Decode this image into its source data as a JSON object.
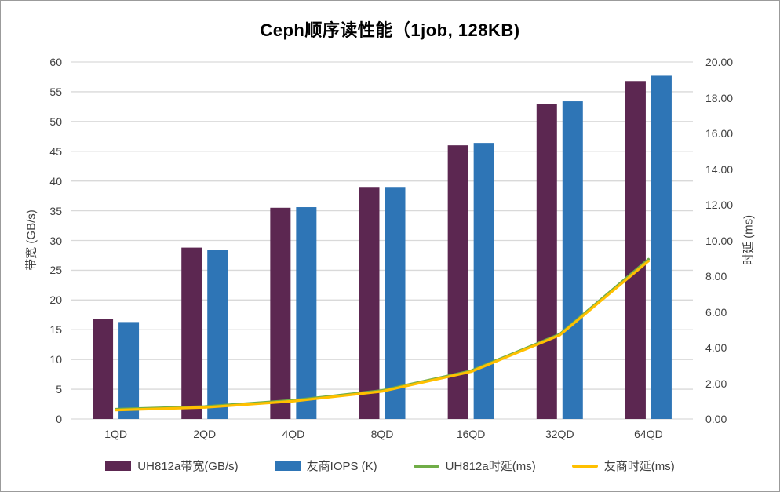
{
  "title": "Ceph顺序读性能（1job, 128KB)",
  "chart_data": {
    "type": "combo-bar-line",
    "title": "Ceph顺序读性能（1job, 128KB)",
    "categories": [
      "1QD",
      "2QD",
      "4QD",
      "8QD",
      "16QD",
      "32QD",
      "64QD"
    ],
    "series": [
      {
        "name": "UH812a带宽(GB/s)",
        "type": "bar",
        "axis": "left",
        "color": "#5C2751",
        "values": [
          16.8,
          28.8,
          35.5,
          39.0,
          46.0,
          53.0,
          56.8
        ]
      },
      {
        "name": "友商IOPS (K)",
        "type": "bar",
        "axis": "left",
        "color": "#2E75B6",
        "values": [
          16.3,
          28.4,
          35.6,
          39.0,
          46.4,
          53.4,
          57.7
        ]
      },
      {
        "name": "UH812a时延(ms)",
        "type": "line",
        "axis": "right",
        "color": "#70AD47",
        "values": [
          0.55,
          0.7,
          1.05,
          1.6,
          2.7,
          4.75,
          8.95
        ]
      },
      {
        "name": "友商时延(ms)",
        "type": "line",
        "axis": "right",
        "color": "#FFC000",
        "values": [
          0.5,
          0.65,
          1.0,
          1.55,
          2.65,
          4.7,
          8.85
        ]
      }
    ],
    "left_axis": {
      "label": "带宽 (GB/s)",
      "min": 0,
      "max": 60,
      "step": 5,
      "decimals": 0
    },
    "right_axis": {
      "label": "时延 (ms)",
      "min": 0,
      "max": 20,
      "step": 2,
      "decimals": 2
    },
    "grid": true,
    "gridline_color": "#D9D9D9",
    "legend_position": "bottom"
  }
}
